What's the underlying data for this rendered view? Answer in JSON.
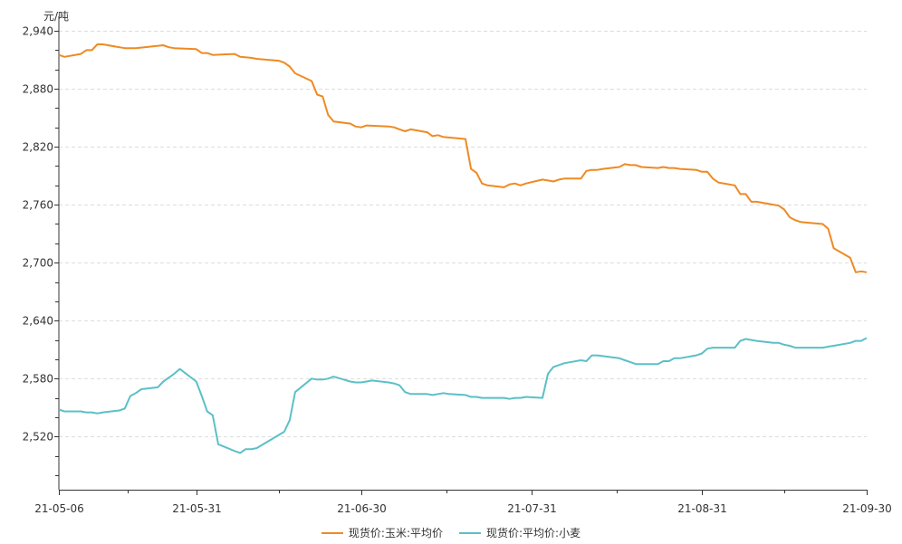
{
  "chart_data": {
    "type": "line",
    "y_unit": "元/吨",
    "ylim": [
      2465,
      2955
    ],
    "y_ticks": [
      2520,
      2580,
      2640,
      2700,
      2760,
      2820,
      2880,
      2940
    ],
    "y_tick_labels": [
      "2,520",
      "2,580",
      "2,640",
      "2,700",
      "2,760",
      "2,820",
      "2,880",
      "2,940"
    ],
    "x_start": "2021-05-06",
    "x_end": "2021-09-30",
    "x_ticks": [
      "2021-05-06",
      "2021-05-31",
      "2021-06-30",
      "2021-07-31",
      "2021-08-31",
      "2021-09-30"
    ],
    "x_tick_labels": [
      "21-05-06",
      "21-05-31",
      "21-06-30",
      "21-07-31",
      "21-08-31",
      "21-09-30"
    ],
    "grid": true,
    "legend_position": "bottom",
    "series": [
      {
        "name": "现货价:玉米:平均价",
        "color": "#ee8a23",
        "points": [
          [
            "2021-05-06",
            2915
          ],
          [
            "2021-05-07",
            2913
          ],
          [
            "2021-05-10",
            2916
          ],
          [
            "2021-05-11",
            2920
          ],
          [
            "2021-05-12",
            2920
          ],
          [
            "2021-05-13",
            2926
          ],
          [
            "2021-05-14",
            2926
          ],
          [
            "2021-05-17",
            2923
          ],
          [
            "2021-05-18",
            2922
          ],
          [
            "2021-05-20",
            2922
          ],
          [
            "2021-05-25",
            2925
          ],
          [
            "2021-05-26",
            2923
          ],
          [
            "2021-05-27",
            2922
          ],
          [
            "2021-05-31",
            2921
          ],
          [
            "2021-06-01",
            2917
          ],
          [
            "2021-06-02",
            2917
          ],
          [
            "2021-06-03",
            2915
          ],
          [
            "2021-06-07",
            2916
          ],
          [
            "2021-06-08",
            2913
          ],
          [
            "2021-06-10",
            2912
          ],
          [
            "2021-06-11",
            2911
          ],
          [
            "2021-06-15",
            2909
          ],
          [
            "2021-06-16",
            2907
          ],
          [
            "2021-06-17",
            2903
          ],
          [
            "2021-06-18",
            2896
          ],
          [
            "2021-06-21",
            2888
          ],
          [
            "2021-06-22",
            2874
          ],
          [
            "2021-06-23",
            2872
          ],
          [
            "2021-06-24",
            2853
          ],
          [
            "2021-06-25",
            2846
          ],
          [
            "2021-06-28",
            2844
          ],
          [
            "2021-06-29",
            2841
          ],
          [
            "2021-06-30",
            2840
          ],
          [
            "2021-07-01",
            2842
          ],
          [
            "2021-07-05",
            2841
          ],
          [
            "2021-07-06",
            2840
          ],
          [
            "2021-07-07",
            2838
          ],
          [
            "2021-07-08",
            2836
          ],
          [
            "2021-07-09",
            2838
          ],
          [
            "2021-07-12",
            2835
          ],
          [
            "2021-07-13",
            2831
          ],
          [
            "2021-07-14",
            2832
          ],
          [
            "2021-07-15",
            2830
          ],
          [
            "2021-07-19",
            2828
          ],
          [
            "2021-07-20",
            2797
          ],
          [
            "2021-07-21",
            2793
          ],
          [
            "2021-07-22",
            2782
          ],
          [
            "2021-07-23",
            2780
          ],
          [
            "2021-07-26",
            2778
          ],
          [
            "2021-07-27",
            2781
          ],
          [
            "2021-07-28",
            2782
          ],
          [
            "2021-07-29",
            2780
          ],
          [
            "2021-07-30",
            2782
          ],
          [
            "2021-08-02",
            2786
          ],
          [
            "2021-08-03",
            2785
          ],
          [
            "2021-08-04",
            2784
          ],
          [
            "2021-08-05",
            2786
          ],
          [
            "2021-08-06",
            2787
          ],
          [
            "2021-08-09",
            2787
          ],
          [
            "2021-08-10",
            2795
          ],
          [
            "2021-08-11",
            2796
          ],
          [
            "2021-08-12",
            2796
          ],
          [
            "2021-08-13",
            2797
          ],
          [
            "2021-08-16",
            2799
          ],
          [
            "2021-08-17",
            2802
          ],
          [
            "2021-08-18",
            2801
          ],
          [
            "2021-08-19",
            2801
          ],
          [
            "2021-08-20",
            2799
          ],
          [
            "2021-08-23",
            2798
          ],
          [
            "2021-08-24",
            2799
          ],
          [
            "2021-08-25",
            2798
          ],
          [
            "2021-08-26",
            2798
          ],
          [
            "2021-08-27",
            2797
          ],
          [
            "2021-08-30",
            2796
          ],
          [
            "2021-08-31",
            2794
          ],
          [
            "2021-09-01",
            2794
          ],
          [
            "2021-09-02",
            2787
          ],
          [
            "2021-09-03",
            2783
          ],
          [
            "2021-09-06",
            2780
          ],
          [
            "2021-09-07",
            2771
          ],
          [
            "2021-09-08",
            2771
          ],
          [
            "2021-09-09",
            2763
          ],
          [
            "2021-09-10",
            2763
          ],
          [
            "2021-09-13",
            2760
          ],
          [
            "2021-09-14",
            2759
          ],
          [
            "2021-09-15",
            2755
          ],
          [
            "2021-09-16",
            2747
          ],
          [
            "2021-09-17",
            2744
          ],
          [
            "2021-09-18",
            2742
          ],
          [
            "2021-09-22",
            2740
          ],
          [
            "2021-09-23",
            2735
          ],
          [
            "2021-09-24",
            2715
          ],
          [
            "2021-09-27",
            2705
          ],
          [
            "2021-09-28",
            2690
          ],
          [
            "2021-09-29",
            2691
          ],
          [
            "2021-09-30",
            2690
          ]
        ]
      },
      {
        "name": "现货价:平均价:小麦",
        "color": "#5bc0c6",
        "points": [
          [
            "2021-05-06",
            2548
          ],
          [
            "2021-05-07",
            2546
          ],
          [
            "2021-05-10",
            2546
          ],
          [
            "2021-05-11",
            2545
          ],
          [
            "2021-05-12",
            2545
          ],
          [
            "2021-05-13",
            2544
          ],
          [
            "2021-05-14",
            2545
          ],
          [
            "2021-05-17",
            2547
          ],
          [
            "2021-05-18",
            2549
          ],
          [
            "2021-05-19",
            2562
          ],
          [
            "2021-05-20",
            2565
          ],
          [
            "2021-05-21",
            2569
          ],
          [
            "2021-05-24",
            2571
          ],
          [
            "2021-05-25",
            2577
          ],
          [
            "2021-05-26",
            2581
          ],
          [
            "2021-05-27",
            2585
          ],
          [
            "2021-05-28",
            2590
          ],
          [
            "2021-05-31",
            2577
          ],
          [
            "2021-06-01",
            2562
          ],
          [
            "2021-06-02",
            2546
          ],
          [
            "2021-06-03",
            2542
          ],
          [
            "2021-06-04",
            2512
          ],
          [
            "2021-06-07",
            2505
          ],
          [
            "2021-06-08",
            2503
          ],
          [
            "2021-06-09",
            2507
          ],
          [
            "2021-06-10",
            2507
          ],
          [
            "2021-06-11",
            2508
          ],
          [
            "2021-06-16",
            2525
          ],
          [
            "2021-06-17",
            2537
          ],
          [
            "2021-06-18",
            2566
          ],
          [
            "2021-06-21",
            2580
          ],
          [
            "2021-06-22",
            2579
          ],
          [
            "2021-06-23",
            2579
          ],
          [
            "2021-06-24",
            2580
          ],
          [
            "2021-06-25",
            2582
          ],
          [
            "2021-06-28",
            2577
          ],
          [
            "2021-06-29",
            2576
          ],
          [
            "2021-06-30",
            2576
          ],
          [
            "2021-07-01",
            2577
          ],
          [
            "2021-07-02",
            2578
          ],
          [
            "2021-07-05",
            2576
          ],
          [
            "2021-07-06",
            2575
          ],
          [
            "2021-07-07",
            2573
          ],
          [
            "2021-07-08",
            2566
          ],
          [
            "2021-07-09",
            2564
          ],
          [
            "2021-07-12",
            2564
          ],
          [
            "2021-07-13",
            2563
          ],
          [
            "2021-07-14",
            2564
          ],
          [
            "2021-07-15",
            2565
          ],
          [
            "2021-07-16",
            2564
          ],
          [
            "2021-07-19",
            2563
          ],
          [
            "2021-07-20",
            2561
          ],
          [
            "2021-07-21",
            2561
          ],
          [
            "2021-07-22",
            2560
          ],
          [
            "2021-07-23",
            2560
          ],
          [
            "2021-07-26",
            2560
          ],
          [
            "2021-07-27",
            2559
          ],
          [
            "2021-07-28",
            2560
          ],
          [
            "2021-07-29",
            2560
          ],
          [
            "2021-07-30",
            2561
          ],
          [
            "2021-08-02",
            2560
          ],
          [
            "2021-08-03",
            2585
          ],
          [
            "2021-08-04",
            2592
          ],
          [
            "2021-08-05",
            2594
          ],
          [
            "2021-08-06",
            2596
          ],
          [
            "2021-08-09",
            2599
          ],
          [
            "2021-08-10",
            2598
          ],
          [
            "2021-08-11",
            2604
          ],
          [
            "2021-08-12",
            2604
          ],
          [
            "2021-08-16",
            2601
          ],
          [
            "2021-08-17",
            2599
          ],
          [
            "2021-08-18",
            2597
          ],
          [
            "2021-08-19",
            2595
          ],
          [
            "2021-08-20",
            2595
          ],
          [
            "2021-08-23",
            2595
          ],
          [
            "2021-08-24",
            2598
          ],
          [
            "2021-08-25",
            2598
          ],
          [
            "2021-08-26",
            2601
          ],
          [
            "2021-08-27",
            2601
          ],
          [
            "2021-08-30",
            2604
          ],
          [
            "2021-08-31",
            2606
          ],
          [
            "2021-09-01",
            2611
          ],
          [
            "2021-09-02",
            2612
          ],
          [
            "2021-09-06",
            2612
          ],
          [
            "2021-09-07",
            2619
          ],
          [
            "2021-09-08",
            2621
          ],
          [
            "2021-09-09",
            2620
          ],
          [
            "2021-09-10",
            2619
          ],
          [
            "2021-09-13",
            2617
          ],
          [
            "2021-09-14",
            2617
          ],
          [
            "2021-09-15",
            2615
          ],
          [
            "2021-09-16",
            2614
          ],
          [
            "2021-09-17",
            2612
          ],
          [
            "2021-09-18",
            2612
          ],
          [
            "2021-09-22",
            2612
          ],
          [
            "2021-09-23",
            2613
          ],
          [
            "2021-09-24",
            2614
          ],
          [
            "2021-09-27",
            2617
          ],
          [
            "2021-09-28",
            2619
          ],
          [
            "2021-09-29",
            2619
          ],
          [
            "2021-09-30",
            2622
          ]
        ]
      }
    ]
  }
}
